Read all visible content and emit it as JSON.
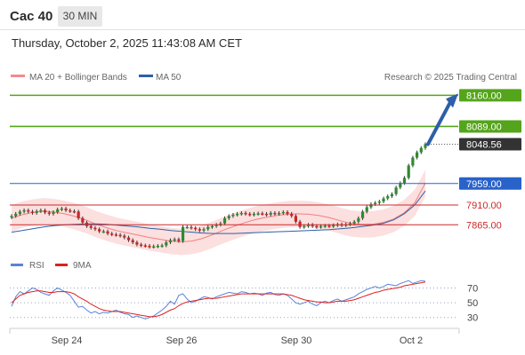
{
  "header": {
    "instrument": "Cac 40",
    "timeframe": "30 MIN"
  },
  "timestamp": "Thursday, October 2, 2025 11:43:08 AM CET",
  "legend": {
    "bb": {
      "label": "MA 20 + Bollinger Bands",
      "color": "#f28b8b"
    },
    "ma50": {
      "label": "MA 50",
      "color": "#2e5fa8"
    }
  },
  "credit": "Research © 2025 Trading Central",
  "chart_data": {
    "type": "candlestick",
    "price_range": [
      7815,
      8185
    ],
    "x_ticks": [
      "Sep 24",
      "Sep 26",
      "Sep 30",
      "Oct 2"
    ],
    "levels": [
      {
        "value": 8160,
        "label": "8160.00",
        "color": "#55a51c",
        "style": "resistance",
        "tag": "filled"
      },
      {
        "value": 8089,
        "label": "8089.00",
        "color": "#55a51c",
        "style": "resistance",
        "tag": "filled"
      },
      {
        "value": 8048.56,
        "label": "8048.56",
        "color": "#333333",
        "style": "last",
        "tag": "filled"
      },
      {
        "value": 7959,
        "label": "7959.00",
        "color": "#2962c9",
        "style": "pivot",
        "tag": "filled"
      },
      {
        "value": 7910,
        "label": "7910.00",
        "color": "#cc2a2a",
        "style": "support",
        "tag": "text"
      },
      {
        "value": 7865,
        "label": "7865.00",
        "color": "#cc2a2a",
        "style": "support",
        "tag": "text"
      }
    ],
    "candles": [
      7885,
      7890,
      7895,
      7898,
      7895,
      7892,
      7896,
      7898,
      7893,
      7890,
      7894,
      7900,
      7902,
      7898,
      7896,
      7895,
      7880,
      7870,
      7862,
      7858,
      7855,
      7850,
      7850,
      7845,
      7843,
      7842,
      7840,
      7836,
      7830,
      7825,
      7820,
      7818,
      7817,
      7815,
      7816,
      7817,
      7818,
      7825,
      7830,
      7832,
      7828,
      7860,
      7860,
      7858,
      7855,
      7852,
      7855,
      7860,
      7862,
      7865,
      7868,
      7880,
      7885,
      7888,
      7890,
      7892,
      7890,
      7888,
      7890,
      7891,
      7890,
      7888,
      7892,
      7890,
      7892,
      7894,
      7890,
      7885,
      7872,
      7860,
      7862,
      7865,
      7862,
      7860,
      7862,
      7863,
      7862,
      7864,
      7866,
      7864,
      7866,
      7868,
      7872,
      7880,
      7895,
      7905,
      7912,
      7915,
      7918,
      7925,
      7930,
      7935,
      7950,
      7960,
      7972,
      8000,
      8018,
      8030,
      8040,
      8048.56
    ],
    "ma50": [
      7848,
      7852,
      7856,
      7860,
      7863,
      7865,
      7866,
      7867,
      7867,
      7866,
      7864,
      7862,
      7860,
      7857,
      7855,
      7852,
      7850,
      7848,
      7846,
      7845,
      7845,
      7845,
      7846,
      7847,
      7848,
      7849,
      7850,
      7851,
      7852,
      7853,
      7854,
      7856,
      7858,
      7861,
      7864,
      7868,
      7876,
      7890,
      7910,
      7942
    ],
    "bb_mid": [
      7880,
      7888,
      7893,
      7896,
      7894,
      7890,
      7884,
      7876,
      7866,
      7858,
      7851,
      7846,
      7841,
      7836,
      7832,
      7828,
      7826,
      7828,
      7834,
      7843,
      7853,
      7862,
      7870,
      7877,
      7882,
      7886,
      7889,
      7890,
      7889,
      7886,
      7881,
      7874,
      7868,
      7866,
      7866,
      7870,
      7878,
      7892,
      7915,
      7960
    ],
    "rsi": {
      "labels": [
        "RSI",
        "9MA"
      ],
      "colors": [
        "#5b82d8",
        "#e02020"
      ],
      "levels": [
        70,
        50,
        30
      ],
      "range": [
        20,
        85
      ],
      "rsi_values": [
        45,
        58,
        65,
        62,
        66,
        70,
        68,
        64,
        62,
        60,
        66,
        70,
        67,
        64,
        60,
        52,
        44,
        45,
        40,
        36,
        38,
        35,
        37,
        36,
        38,
        40,
        37,
        35,
        34,
        30,
        32,
        30,
        28,
        30,
        32,
        36,
        40,
        45,
        52,
        48,
        60,
        62,
        55,
        50,
        52,
        55,
        58,
        57,
        55,
        58,
        60,
        62,
        64,
        63,
        62,
        65,
        64,
        62,
        63,
        62,
        60,
        63,
        64,
        61,
        60,
        62,
        60,
        55,
        50,
        48,
        50,
        52,
        48,
        46,
        50,
        52,
        50,
        53,
        55,
        52,
        54,
        56,
        58,
        62,
        65,
        68,
        70,
        72,
        70,
        72,
        75,
        74,
        73,
        76,
        78,
        80,
        76,
        78,
        80,
        79
      ],
      "ma_values": [
        50,
        55,
        60,
        62,
        64,
        65,
        66,
        66,
        65,
        64,
        64,
        65,
        65,
        65,
        64,
        62,
        58,
        55,
        52,
        48,
        45,
        42,
        40,
        39,
        38,
        38,
        38,
        37,
        36,
        35,
        34,
        33,
        32,
        31,
        31,
        32,
        34,
        37,
        40,
        42,
        46,
        49,
        51,
        52,
        53,
        54,
        55,
        56,
        56,
        56,
        57,
        58,
        59,
        60,
        61,
        62,
        62,
        62,
        62,
        62,
        62,
        62,
        62,
        62,
        62,
        62,
        61,
        60,
        58,
        56,
        54,
        53,
        52,
        51,
        51,
        50,
        50,
        51,
        52,
        52,
        52,
        53,
        54,
        56,
        58,
        60,
        62,
        64,
        65,
        67,
        68,
        69,
        70,
        71,
        73,
        74,
        75,
        76,
        77,
        78
      ]
    }
  }
}
